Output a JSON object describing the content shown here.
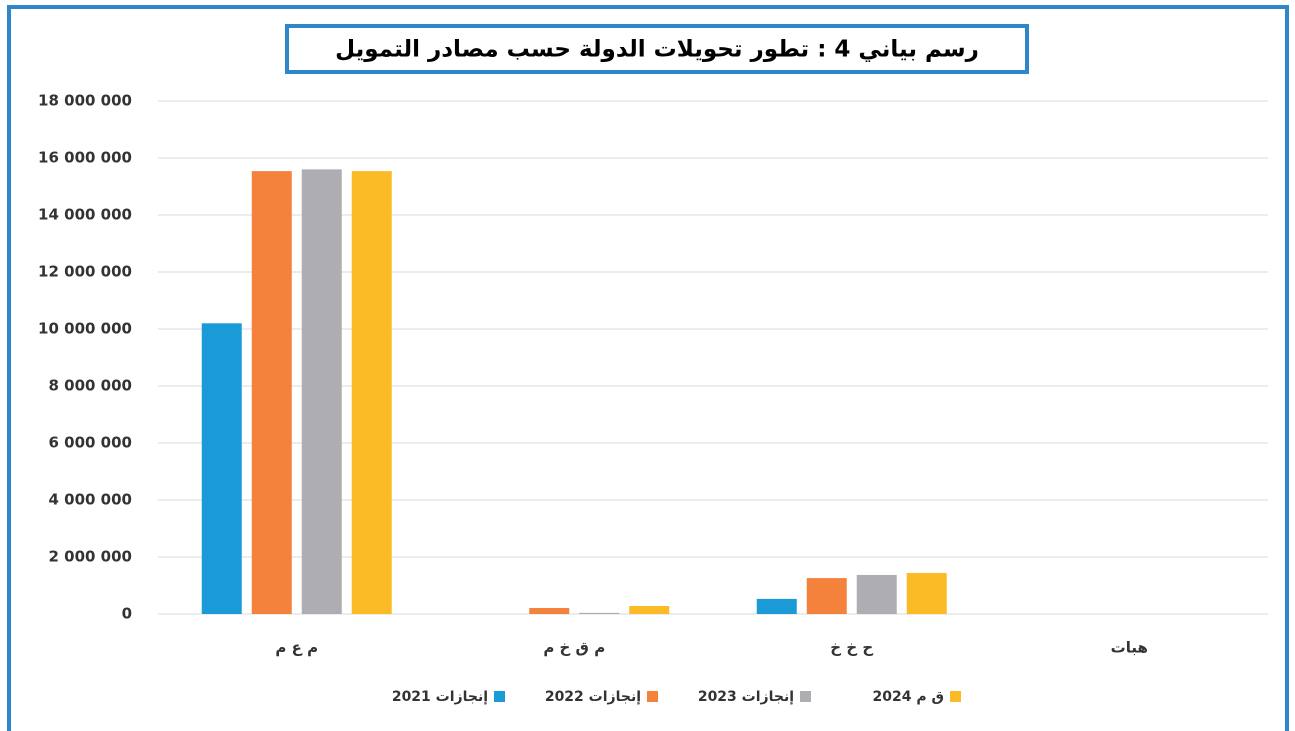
{
  "chart_data": {
    "type": "bar",
    "title": "رسم بياني 4 : تطور تحويلات الدولة حسب مصادر التمويل",
    "categories": [
      "م ع م",
      "م ق خ م",
      "ح خ خ",
      "هبات"
    ],
    "series": [
      {
        "name": "إنجازات 2021",
        "color": "#1a9bd7",
        "values": [
          10200000,
          0,
          530000,
          0
        ]
      },
      {
        "name": "إنجازات 2022",
        "color": "#f4823c",
        "values": [
          15540000,
          210000,
          1260000,
          0
        ]
      },
      {
        "name": "إنجازات 2023",
        "color": "#aeaeb2",
        "values": [
          15600000,
          40000,
          1370000,
          0
        ]
      },
      {
        "name": "ق م 2024",
        "color": "#fbbb27",
        "values": [
          15540000,
          280000,
          1440000,
          0
        ]
      }
    ],
    "ylim": [
      0,
      18000000
    ],
    "yticks": [
      0,
      {
        "value": 2000000,
        "label": "2 000 000"
      },
      {
        "value": 4000000,
        "label": "4 000 000"
      },
      {
        "value": 6000000,
        "label": "6 000 000"
      },
      {
        "value": 8000000,
        "label": "8 000 000"
      },
      {
        "value": 10000000,
        "label": "10 000 000"
      },
      {
        "value": 12000000,
        "label": "12 000 000"
      },
      {
        "value": 14000000,
        "label": "14 000 000"
      },
      {
        "value": 16000000,
        "label": "16 000 000"
      },
      {
        "value": 18000000,
        "label": "18 000 000"
      }
    ],
    "grid": true
  }
}
